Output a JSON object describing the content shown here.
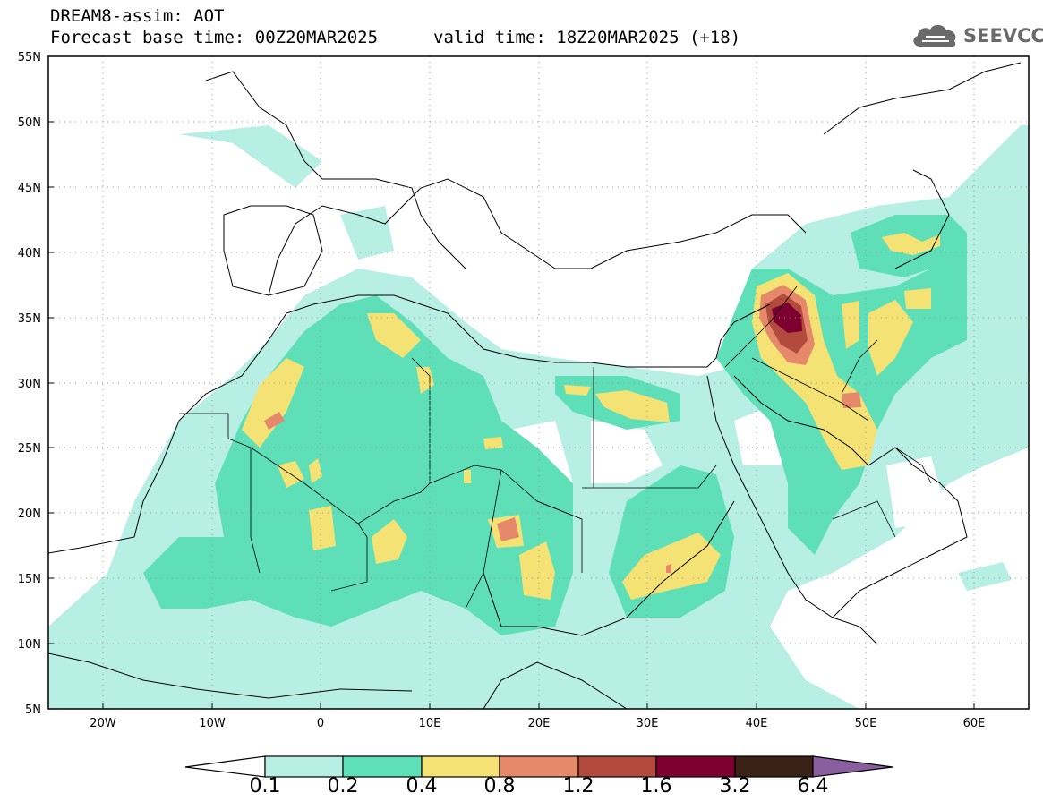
{
  "header": {
    "title_line1": "DREAM8-assim: AOT",
    "title_line2": "Forecast base time: 00Z20MAR2025",
    "valid_time": "valid time: 18Z20MAR2025 (+18)"
  },
  "logo": {
    "text": "SEEVCCC",
    "icon": "cloud-icon"
  },
  "map": {
    "projection": "lat-lon",
    "lon_range": [
      -25,
      65
    ],
    "lat_range": [
      5,
      55
    ],
    "lat_labels": [
      "55N",
      "50N",
      "45N",
      "40N",
      "35N",
      "30N",
      "25N",
      "20N",
      "15N",
      "10N",
      "5N"
    ],
    "lon_labels": [
      "20W",
      "10W",
      "0",
      "10E",
      "20E",
      "30E",
      "40E",
      "50E",
      "60E"
    ],
    "grid": "dotted"
  },
  "colorbar": {
    "levels": [
      "0.1",
      "0.2",
      "0.4",
      "0.8",
      "1.2",
      "1.6",
      "3.2",
      "6.4"
    ],
    "colors": [
      "#ffffff",
      "#b8efe5",
      "#5fdfb8",
      "#f4e374",
      "#e6896a",
      "#b34a3e",
      "#7c0030",
      "#3a2216",
      "#8a5fa0"
    ]
  }
}
